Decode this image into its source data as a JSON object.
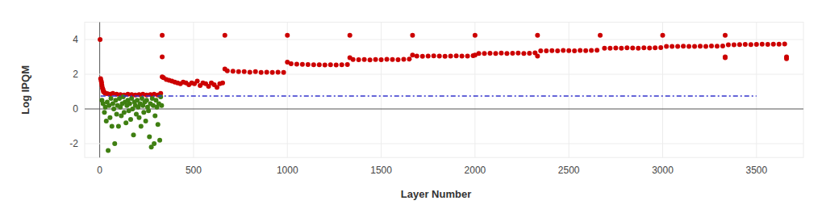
{
  "chart_data": {
    "type": "scatter",
    "x_label": "Layer Number",
    "y_label": "Log IPQM",
    "xlim": [
      -80,
      3750
    ],
    "ylim": [
      -2.8,
      5
    ],
    "xticks": [
      0,
      500,
      1000,
      1500,
      2000,
      2500,
      3000,
      3500
    ],
    "yticks": [
      -2,
      0,
      2,
      4
    ],
    "grid": true,
    "marker": "circle",
    "series": [
      {
        "color": "#cc0000",
        "marker": "circle",
        "x": [
          2,
          5,
          8,
          10,
          12,
          15,
          18,
          20,
          25,
          30,
          40,
          55,
          70,
          90,
          110,
          130,
          150,
          170,
          190,
          210,
          230,
          250,
          270,
          290,
          310,
          325,
          333,
          333,
          333,
          340,
          355,
          370,
          385,
          400,
          415,
          430,
          445,
          460,
          475,
          490,
          505,
          520,
          535,
          550,
          565,
          580,
          595,
          610,
          625,
          640,
          655,
          667,
          667,
          680,
          710,
          740,
          770,
          800,
          830,
          860,
          890,
          920,
          950,
          980,
          1000,
          1000,
          1020,
          1050,
          1080,
          1110,
          1140,
          1170,
          1200,
          1230,
          1260,
          1290,
          1320,
          1333,
          1333,
          1350,
          1380,
          1410,
          1440,
          1470,
          1500,
          1530,
          1560,
          1590,
          1620,
          1650,
          1667,
          1667,
          1690,
          1720,
          1750,
          1780,
          1810,
          1840,
          1870,
          1900,
          1930,
          1960,
          1990,
          2000,
          2000,
          2020,
          2050,
          2080,
          2110,
          2140,
          2170,
          2200,
          2230,
          2260,
          2290,
          2320,
          2333,
          2333,
          2350,
          2380,
          2410,
          2440,
          2470,
          2500,
          2530,
          2560,
          2590,
          2620,
          2650,
          2667,
          2690,
          2720,
          2750,
          2780,
          2810,
          2840,
          2870,
          2900,
          2930,
          2960,
          2990,
          3000,
          3020,
          3050,
          3080,
          3110,
          3140,
          3170,
          3200,
          3230,
          3260,
          3290,
          3320,
          3333,
          3333,
          3333,
          3350,
          3380,
          3410,
          3440,
          3470,
          3500,
          3530,
          3560,
          3590,
          3620,
          3650,
          3660,
          3660
        ],
        "values": [
          4.0,
          1.75,
          1.6,
          1.5,
          1.35,
          1.2,
          1.1,
          1.0,
          0.95,
          0.9,
          0.88,
          0.85,
          0.9,
          0.85,
          0.82,
          0.8,
          0.85,
          0.82,
          0.8,
          0.82,
          0.85,
          0.8,
          0.82,
          0.85,
          0.8,
          0.9,
          4.25,
          3.0,
          1.85,
          1.8,
          1.7,
          1.65,
          1.6,
          1.55,
          1.5,
          1.45,
          1.55,
          1.5,
          1.4,
          1.5,
          1.45,
          1.6,
          1.35,
          1.5,
          1.45,
          1.3,
          1.5,
          1.4,
          1.25,
          1.45,
          1.5,
          4.25,
          2.3,
          2.2,
          2.18,
          2.15,
          2.15,
          2.12,
          2.15,
          2.1,
          2.12,
          2.1,
          2.12,
          2.1,
          4.25,
          2.7,
          2.6,
          2.58,
          2.57,
          2.56,
          2.55,
          2.55,
          2.54,
          2.55,
          2.53,
          2.55,
          2.56,
          4.25,
          2.95,
          2.85,
          2.84,
          2.85,
          2.83,
          2.85,
          2.84,
          2.86,
          2.85,
          2.84,
          2.86,
          2.87,
          4.25,
          3.1,
          3.05,
          3.04,
          3.05,
          3.06,
          3.05,
          3.04,
          3.05,
          3.06,
          3.05,
          3.05,
          3.07,
          4.25,
          3.1,
          3.2,
          3.2,
          3.21,
          3.2,
          3.22,
          3.2,
          3.21,
          3.22,
          3.2,
          3.21,
          3.23,
          4.25,
          3.05,
          3.35,
          3.35,
          3.36,
          3.35,
          3.37,
          3.36,
          3.35,
          3.37,
          3.36,
          3.37,
          3.38,
          4.25,
          3.5,
          3.5,
          3.51,
          3.5,
          3.52,
          3.51,
          3.5,
          3.52,
          3.51,
          3.52,
          3.53,
          4.25,
          3.6,
          3.6,
          3.61,
          3.62,
          3.61,
          3.6,
          3.62,
          3.61,
          3.63,
          3.62,
          3.63,
          4.25,
          3.0,
          2.95,
          3.7,
          3.7,
          3.71,
          3.72,
          3.71,
          3.72,
          3.73,
          3.72,
          3.73,
          3.73,
          3.74,
          3.0,
          2.9
        ]
      },
      {
        "color": "#3f7f12",
        "marker": "circle",
        "x": [
          12,
          18,
          25,
          30,
          35,
          40,
          45,
          50,
          55,
          60,
          65,
          70,
          75,
          80,
          85,
          90,
          95,
          100,
          105,
          110,
          115,
          120,
          125,
          130,
          135,
          140,
          145,
          150,
          155,
          160,
          165,
          170,
          175,
          180,
          185,
          190,
          195,
          200,
          205,
          210,
          215,
          220,
          225,
          230,
          235,
          240,
          245,
          250,
          255,
          260,
          265,
          270,
          275,
          280,
          285,
          290,
          295,
          300,
          305,
          310,
          315,
          320,
          325,
          330
        ],
        "values": [
          0.5,
          0.3,
          -0.2,
          0.1,
          -0.7,
          0.4,
          -2.4,
          0.2,
          -0.5,
          0.6,
          -1.0,
          0.3,
          0.0,
          -2.0,
          0.5,
          -0.3,
          0.2,
          -1.0,
          0.6,
          0.1,
          -0.4,
          0.3,
          0.7,
          -0.2,
          0.4,
          -0.8,
          0.2,
          0.5,
          -0.1,
          0.3,
          -0.6,
          0.6,
          0.0,
          -1.5,
          0.4,
          0.2,
          -0.3,
          0.5,
          0.1,
          -0.5,
          0.3,
          -1.0,
          0.6,
          0.2,
          -0.2,
          0.4,
          -0.7,
          0.5,
          0.1,
          -0.1,
          -1.6,
          0.3,
          -2.2,
          0.6,
          0.2,
          -2.0,
          -0.4,
          0.5,
          0.1,
          -0.9,
          0.3,
          -1.8,
          0.7,
          0.2
        ]
      },
      {
        "type": "line",
        "color": "#3333cc",
        "line_style": "dashdot",
        "x": [
          5,
          3500
        ],
        "values": [
          0.75,
          0.75
        ]
      }
    ]
  }
}
